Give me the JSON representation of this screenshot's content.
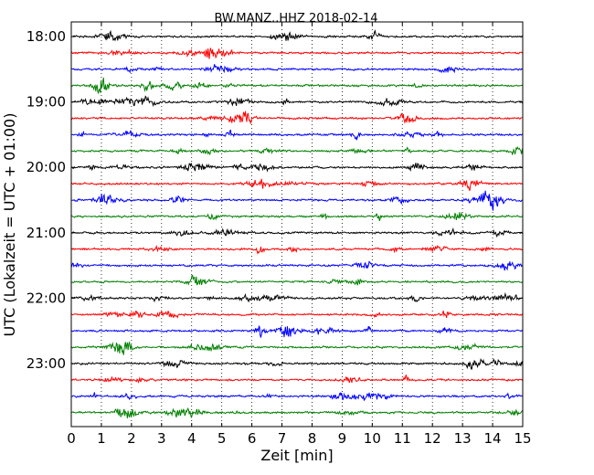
{
  "chart_data": {
    "type": "line",
    "title": "BW.MANZ..HHZ 2018-02-14",
    "xlabel": "Zeit  [min]",
    "ylabel": "UTC (Lokalzeit = UTC + 01:00)",
    "xlim": [
      0,
      15
    ],
    "xticks": [
      "0",
      "1",
      "2",
      "3",
      "4",
      "5",
      "6",
      "7",
      "8",
      "9",
      "10",
      "11",
      "12",
      "13",
      "14",
      "15"
    ],
    "yticks": [
      "18:00",
      "19:00",
      "20:00",
      "21:00",
      "22:00",
      "23:00"
    ],
    "grid": "x-dotted",
    "trace_colors": [
      "#000000",
      "#ff0000",
      "#0000ff",
      "#008000"
    ],
    "traces": [
      {
        "start": "18:00"
      },
      {
        "start": "18:15"
      },
      {
        "start": "18:30"
      },
      {
        "start": "18:45"
      },
      {
        "start": "19:00"
      },
      {
        "start": "19:15"
      },
      {
        "start": "19:30"
      },
      {
        "start": "19:45"
      },
      {
        "start": "20:00"
      },
      {
        "start": "20:15"
      },
      {
        "start": "20:30"
      },
      {
        "start": "20:45"
      },
      {
        "start": "21:00"
      },
      {
        "start": "21:15"
      },
      {
        "start": "21:30"
      },
      {
        "start": "21:45"
      },
      {
        "start": "22:00"
      },
      {
        "start": "22:15"
      },
      {
        "start": "22:30"
      },
      {
        "start": "22:45"
      },
      {
        "start": "23:00"
      },
      {
        "start": "23:15"
      },
      {
        "start": "23:30"
      },
      {
        "start": "23:45"
      }
    ]
  }
}
